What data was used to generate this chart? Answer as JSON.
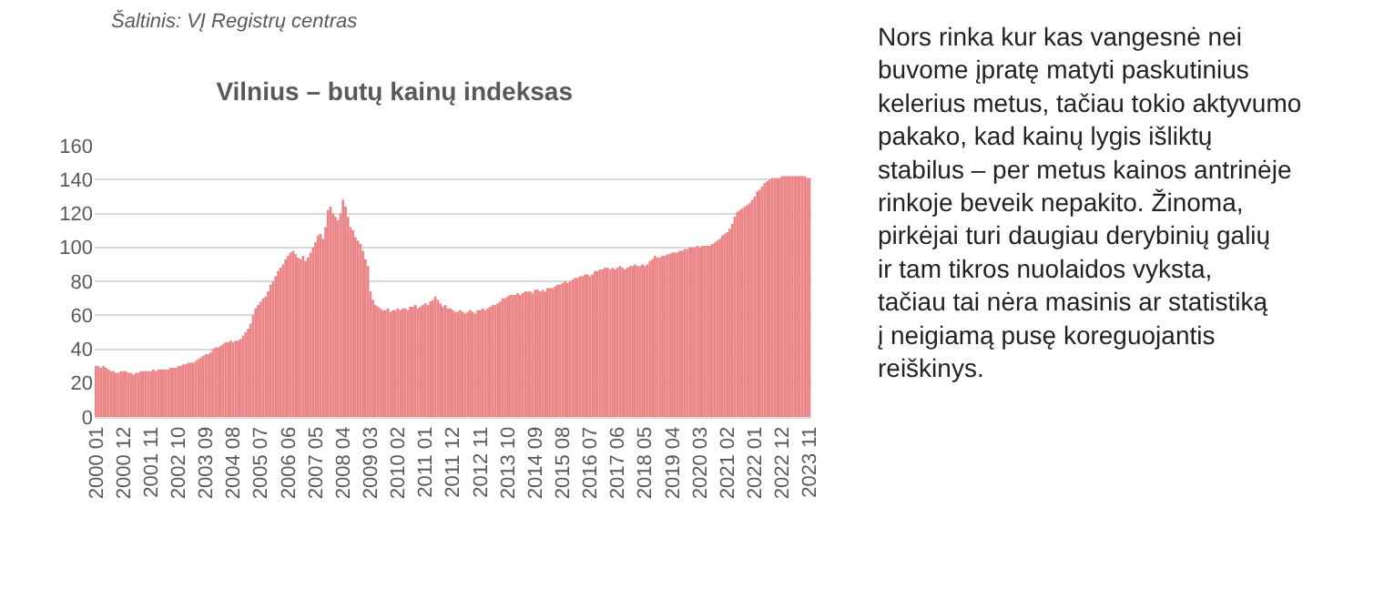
{
  "chart_data": {
    "type": "bar",
    "title": "Vilnius – butų kainų indeksas",
    "categories": [
      "2000 01",
      null,
      null,
      null,
      null,
      null,
      null,
      null,
      null,
      null,
      null,
      "2000 12",
      null,
      null,
      null,
      null,
      null,
      null,
      null,
      null,
      null,
      null,
      "2001 11",
      null,
      null,
      null,
      null,
      null,
      null,
      null,
      null,
      null,
      null,
      "2002 10",
      null,
      null,
      null,
      null,
      null,
      null,
      null,
      null,
      null,
      null,
      "2003 09",
      null,
      null,
      null,
      null,
      null,
      null,
      null,
      null,
      null,
      null,
      "2004 08",
      null,
      null,
      null,
      null,
      null,
      null,
      null,
      null,
      null,
      null,
      "2005 07",
      null,
      null,
      null,
      null,
      null,
      null,
      null,
      null,
      null,
      null,
      "2006 06",
      null,
      null,
      null,
      null,
      null,
      null,
      null,
      null,
      null,
      null,
      "2007 05",
      null,
      null,
      null,
      null,
      null,
      null,
      null,
      null,
      null,
      null,
      "2008 04",
      null,
      null,
      null,
      null,
      null,
      null,
      null,
      null,
      null,
      null,
      "2009 03",
      null,
      null,
      null,
      null,
      null,
      null,
      null,
      null,
      null,
      null,
      "2010 02",
      null,
      null,
      null,
      null,
      null,
      null,
      null,
      null,
      null,
      null,
      "2011 01",
      null,
      null,
      null,
      null,
      null,
      null,
      null,
      null,
      null,
      null,
      "2011 12",
      null,
      null,
      null,
      null,
      null,
      null,
      null,
      null,
      null,
      null,
      "2012 11",
      null,
      null,
      null,
      null,
      null,
      null,
      null,
      null,
      null,
      null,
      "2013 10",
      null,
      null,
      null,
      null,
      null,
      null,
      null,
      null,
      null,
      null,
      "2014 09",
      null,
      null,
      null,
      null,
      null,
      null,
      null,
      null,
      null,
      null,
      "2015 08",
      null,
      null,
      null,
      null,
      null,
      null,
      null,
      null,
      null,
      null,
      "2016 07",
      null,
      null,
      null,
      null,
      null,
      null,
      null,
      null,
      null,
      null,
      "2017 06",
      null,
      null,
      null,
      null,
      null,
      null,
      null,
      null,
      null,
      null,
      "2018 05",
      null,
      null,
      null,
      null,
      null,
      null,
      null,
      null,
      null,
      null,
      "2019 04",
      null,
      null,
      null,
      null,
      null,
      null,
      null,
      null,
      null,
      null,
      "2020 03",
      null,
      null,
      null,
      null,
      null,
      null,
      null,
      null,
      null,
      null,
      "2021 02",
      null,
      null,
      null,
      null,
      null,
      null,
      null,
      null,
      null,
      null,
      "2022 01",
      null,
      null,
      null,
      null,
      null,
      null,
      null,
      null,
      null,
      null,
      "2022 12",
      null,
      null,
      null,
      null,
      null,
      null,
      null,
      null,
      null,
      null,
      "2023 11"
    ],
    "values": [
      30,
      30,
      29,
      30,
      29,
      28,
      27,
      27,
      26,
      26,
      27,
      27,
      27,
      26,
      26,
      25,
      26,
      26,
      27,
      27,
      27,
      27,
      27,
      28,
      27,
      28,
      28,
      28,
      28,
      28,
      29,
      29,
      29,
      30,
      30,
      31,
      31,
      32,
      32,
      32,
      33,
      34,
      35,
      36,
      37,
      37,
      38,
      40,
      41,
      41,
      42,
      43,
      44,
      44,
      45,
      44,
      45,
      45,
      46,
      48,
      50,
      52,
      55,
      60,
      64,
      66,
      68,
      70,
      71,
      74,
      78,
      80,
      83,
      86,
      88,
      90,
      93,
      95,
      97,
      98,
      96,
      94,
      93,
      95,
      92,
      94,
      97,
      100,
      103,
      107,
      108,
      105,
      112,
      122,
      124,
      120,
      118,
      116,
      120,
      128,
      124,
      118,
      112,
      110,
      106,
      104,
      102,
      98,
      93,
      89,
      74,
      69,
      66,
      65,
      64,
      63,
      63,
      64,
      62,
      63,
      63,
      64,
      63,
      64,
      64,
      63,
      65,
      65,
      66,
      64,
      65,
      66,
      67,
      66,
      68,
      69,
      71,
      69,
      67,
      65,
      66,
      64,
      64,
      63,
      62,
      62,
      63,
      62,
      61,
      62,
      63,
      62,
      61,
      63,
      63,
      64,
      63,
      64,
      65,
      66,
      66,
      67,
      68,
      70,
      70,
      71,
      72,
      72,
      72,
      73,
      72,
      73,
      74,
      74,
      74,
      73,
      75,
      75,
      74,
      75,
      74,
      76,
      76,
      76,
      77,
      78,
      78,
      79,
      80,
      79,
      80,
      81,
      82,
      82,
      83,
      83,
      84,
      84,
      83,
      84,
      86,
      86,
      87,
      87,
      88,
      88,
      87,
      88,
      87,
      88,
      89,
      88,
      87,
      88,
      89,
      89,
      90,
      89,
      89,
      90,
      89,
      90,
      92,
      93,
      95,
      94,
      94,
      95,
      95,
      96,
      96,
      97,
      97,
      97,
      98,
      98,
      99,
      99,
      100,
      100,
      100,
      101,
      100,
      101,
      101,
      101,
      101,
      102,
      103,
      104,
      105,
      107,
      108,
      109,
      111,
      114,
      118,
      121,
      122,
      123,
      124,
      125,
      126,
      128,
      130,
      133,
      134,
      136,
      138,
      139,
      140,
      141,
      141,
      141,
      141,
      142,
      142,
      142,
      142,
      142,
      142,
      142,
      142,
      142,
      142,
      141,
      141
    ],
    "color": "#ec8587",
    "ylim": [
      0,
      160
    ],
    "yticks": [
      0,
      20,
      40,
      60,
      80,
      100,
      120,
      140,
      160
    ],
    "grid": "y",
    "annotations": [
      "Šaltinis: VĮ Registrų centras",
      "Nors rinka kur kas vangesnė nei buvome įpratę matyti paskutinius kelerius metus, tačiau tokio aktyvumo pakako, kad kainų lygis išliktų stabilus – per metus kainos antrinėje rinkoje beveik nepakito. Žinoma, pirkėjai turi daugiau derybinių galių ir tam tikros nuolaidos vyksta, tačiau tai nėra masinis ar statistiką į neigiamą pusę koreguojantis reiškinys."
    ]
  }
}
